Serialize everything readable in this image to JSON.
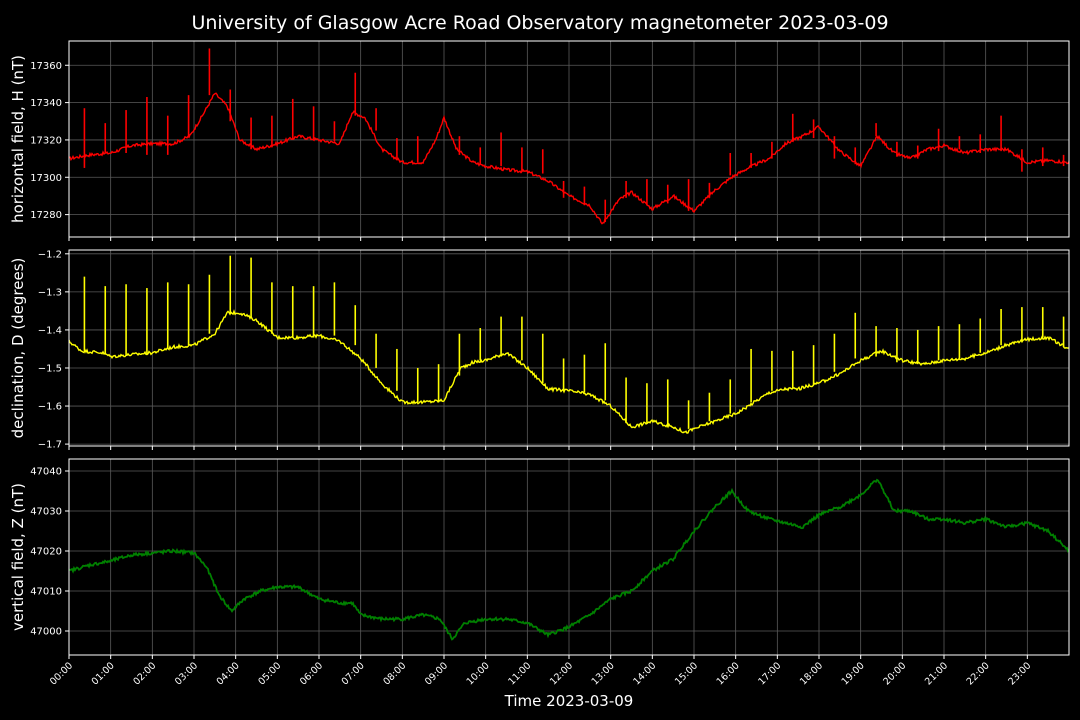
{
  "figure": {
    "title": "University of Glasgow Acre Road Observatory magnetometer 2023-03-09",
    "xlabel": "Time 2023-03-09",
    "x_tick_labels": [
      "00:00",
      "01:00",
      "02:00",
      "03:00",
      "04:00",
      "05:00",
      "06:00",
      "07:00",
      "08:00",
      "09:00",
      "10:00",
      "11:00",
      "12:00",
      "13:00",
      "14:00",
      "15:00",
      "16:00",
      "17:00",
      "18:00",
      "19:00",
      "20:00",
      "21:00",
      "22:00",
      "23:00"
    ],
    "background": "#000000",
    "grid_color": "#5a5a5a"
  },
  "chart_data": [
    {
      "type": "line",
      "ylabel": "horizontal field, H (nT)",
      "color": "#ff0000",
      "xlim": [
        0,
        24
      ],
      "ylim": [
        17268,
        17373
      ],
      "yticks": [
        17280,
        17300,
        17320,
        17340,
        17360
      ],
      "grid": true,
      "x": [
        0,
        0.5,
        1.0,
        1.5,
        2.0,
        2.5,
        2.9,
        3.2,
        3.5,
        3.8,
        4.1,
        4.5,
        5.0,
        5.5,
        6.0,
        6.5,
        6.8,
        7.1,
        7.5,
        8.0,
        8.5,
        8.8,
        9.0,
        9.3,
        9.7,
        10.0,
        10.5,
        11.0,
        11.5,
        12.0,
        12.5,
        12.8,
        13.2,
        13.5,
        14.0,
        14.5,
        15.0,
        15.5,
        15.9,
        16.3,
        16.8,
        17.2,
        17.6,
        18.0,
        18.5,
        19.0,
        19.4,
        19.8,
        20.2,
        20.6,
        21.0,
        21.5,
        22.0,
        22.5,
        23.0,
        23.5,
        24.0
      ],
      "y": [
        17310,
        17312,
        17313,
        17317,
        17318,
        17318,
        17322,
        17333,
        17345,
        17338,
        17320,
        17315,
        17318,
        17322,
        17320,
        17318,
        17335,
        17332,
        17315,
        17308,
        17308,
        17320,
        17332,
        17315,
        17308,
        17306,
        17304,
        17303,
        17298,
        17290,
        17285,
        17275,
        17288,
        17292,
        17283,
        17290,
        17282,
        17293,
        17300,
        17305,
        17310,
        17318,
        17322,
        17327,
        17314,
        17306,
        17322,
        17313,
        17310,
        17315,
        17317,
        17313,
        17315,
        17315,
        17308,
        17309,
        17308
      ],
      "spikes": [
        {
          "x": 0.37,
          "y0": 17305,
          "y1": 17337
        },
        {
          "x": 0.87,
          "y0": 17313,
          "y1": 17329
        },
        {
          "x": 1.37,
          "y0": 17313,
          "y1": 17336
        },
        {
          "x": 1.87,
          "y0": 17312,
          "y1": 17343
        },
        {
          "x": 2.37,
          "y0": 17312,
          "y1": 17333
        },
        {
          "x": 2.87,
          "y0": 17322,
          "y1": 17344
        },
        {
          "x": 3.37,
          "y0": 17344,
          "y1": 17369
        },
        {
          "x": 3.87,
          "y0": 17330,
          "y1": 17347
        },
        {
          "x": 4.37,
          "y0": 17315,
          "y1": 17332
        },
        {
          "x": 4.87,
          "y0": 17316,
          "y1": 17333
        },
        {
          "x": 5.37,
          "y0": 17320,
          "y1": 17342
        },
        {
          "x": 5.87,
          "y0": 17320,
          "y1": 17338
        },
        {
          "x": 6.37,
          "y0": 17319,
          "y1": 17330
        },
        {
          "x": 6.87,
          "y0": 17333,
          "y1": 17356
        },
        {
          "x": 7.37,
          "y0": 17325,
          "y1": 17337
        },
        {
          "x": 7.87,
          "y0": 17310,
          "y1": 17321
        },
        {
          "x": 8.37,
          "y0": 17308,
          "y1": 17322
        },
        {
          "x": 9.37,
          "y0": 17312,
          "y1": 17322
        },
        {
          "x": 9.87,
          "y0": 17307,
          "y1": 17316
        },
        {
          "x": 10.37,
          "y0": 17306,
          "y1": 17324
        },
        {
          "x": 10.87,
          "y0": 17303,
          "y1": 17316
        },
        {
          "x": 11.37,
          "y0": 17302,
          "y1": 17315
        },
        {
          "x": 11.87,
          "y0": 17289,
          "y1": 17298
        },
        {
          "x": 12.37,
          "y0": 17285,
          "y1": 17295
        },
        {
          "x": 12.87,
          "y0": 17276,
          "y1": 17288
        },
        {
          "x": 13.37,
          "y0": 17289,
          "y1": 17298
        },
        {
          "x": 13.87,
          "y0": 17285,
          "y1": 17299
        },
        {
          "x": 14.37,
          "y0": 17286,
          "y1": 17296
        },
        {
          "x": 14.87,
          "y0": 17282,
          "y1": 17299
        },
        {
          "x": 15.37,
          "y0": 17289,
          "y1": 17297
        },
        {
          "x": 15.87,
          "y0": 17301,
          "y1": 17313
        },
        {
          "x": 16.37,
          "y0": 17305,
          "y1": 17313
        },
        {
          "x": 16.87,
          "y0": 17310,
          "y1": 17319
        },
        {
          "x": 17.37,
          "y0": 17319,
          "y1": 17334
        },
        {
          "x": 17.87,
          "y0": 17321,
          "y1": 17331
        },
        {
          "x": 18.37,
          "y0": 17310,
          "y1": 17322
        },
        {
          "x": 18.87,
          "y0": 17307,
          "y1": 17316
        },
        {
          "x": 19.37,
          "y0": 17322,
          "y1": 17329
        },
        {
          "x": 19.87,
          "y0": 17311,
          "y1": 17319
        },
        {
          "x": 20.37,
          "y0": 17310,
          "y1": 17317
        },
        {
          "x": 20.87,
          "y0": 17314,
          "y1": 17326
        },
        {
          "x": 21.37,
          "y0": 17315,
          "y1": 17322
        },
        {
          "x": 21.87,
          "y0": 17313,
          "y1": 17323
        },
        {
          "x": 22.37,
          "y0": 17314,
          "y1": 17333
        },
        {
          "x": 22.87,
          "y0": 17303,
          "y1": 17315
        },
        {
          "x": 23.37,
          "y0": 17306,
          "y1": 17316
        },
        {
          "x": 23.87,
          "y0": 17306,
          "y1": 17312
        }
      ]
    },
    {
      "type": "line",
      "ylabel": "declination, D (degrees)",
      "color": "#ffff00",
      "xlim": [
        0,
        24
      ],
      "ylim": [
        -1.705,
        -1.19
      ],
      "yticks": [
        -1.7,
        -1.6,
        -1.5,
        -1.4,
        -1.3,
        -1.2
      ],
      "grid": true,
      "x": [
        0,
        0.3,
        0.8,
        1.0,
        1.5,
        2.0,
        2.5,
        3.0,
        3.5,
        3.8,
        4.1,
        4.5,
        5.0,
        5.5,
        6.0,
        6.5,
        7.0,
        7.5,
        8.0,
        8.5,
        9.0,
        9.4,
        9.7,
        10.0,
        10.5,
        11.0,
        11.5,
        12.0,
        12.5,
        13.0,
        13.5,
        14.0,
        14.5,
        14.8,
        15.0,
        15.5,
        16.0,
        16.3,
        16.8,
        17.2,
        17.5,
        18.0,
        18.5,
        19.0,
        19.5,
        20.0,
        20.5,
        21.0,
        21.5,
        22.0,
        22.5,
        23.0,
        23.5,
        24.0
      ],
      "y": [
        -1.43,
        -1.455,
        -1.46,
        -1.47,
        -1.465,
        -1.46,
        -1.445,
        -1.44,
        -1.41,
        -1.355,
        -1.355,
        -1.375,
        -1.42,
        -1.42,
        -1.415,
        -1.43,
        -1.475,
        -1.54,
        -1.59,
        -1.59,
        -1.585,
        -1.5,
        -1.485,
        -1.48,
        -1.46,
        -1.5,
        -1.555,
        -1.56,
        -1.57,
        -1.6,
        -1.655,
        -1.64,
        -1.655,
        -1.67,
        -1.66,
        -1.64,
        -1.62,
        -1.6,
        -1.565,
        -1.555,
        -1.555,
        -1.54,
        -1.515,
        -1.48,
        -1.455,
        -1.48,
        -1.49,
        -1.48,
        -1.475,
        -1.46,
        -1.44,
        -1.425,
        -1.42,
        -1.45
      ],
      "spikes": [
        {
          "x": 0.37,
          "y0": -1.455,
          "y1": -1.26
        },
        {
          "x": 0.87,
          "y0": -1.465,
          "y1": -1.285
        },
        {
          "x": 1.37,
          "y0": -1.465,
          "y1": -1.28
        },
        {
          "x": 1.87,
          "y0": -1.463,
          "y1": -1.29
        },
        {
          "x": 2.37,
          "y0": -1.45,
          "y1": -1.275
        },
        {
          "x": 2.87,
          "y0": -1.44,
          "y1": -1.28
        },
        {
          "x": 3.37,
          "y0": -1.41,
          "y1": -1.255
        },
        {
          "x": 3.87,
          "y0": -1.355,
          "y1": -1.205
        },
        {
          "x": 4.37,
          "y0": -1.365,
          "y1": -1.21
        },
        {
          "x": 4.87,
          "y0": -1.41,
          "y1": -1.275
        },
        {
          "x": 5.37,
          "y0": -1.42,
          "y1": -1.285
        },
        {
          "x": 5.87,
          "y0": -1.42,
          "y1": -1.285
        },
        {
          "x": 6.37,
          "y0": -1.415,
          "y1": -1.275
        },
        {
          "x": 6.87,
          "y0": -1.44,
          "y1": -1.335
        },
        {
          "x": 7.37,
          "y0": -1.5,
          "y1": -1.41
        },
        {
          "x": 7.87,
          "y0": -1.56,
          "y1": -1.45
        },
        {
          "x": 8.37,
          "y0": -1.59,
          "y1": -1.5
        },
        {
          "x": 8.87,
          "y0": -1.59,
          "y1": -1.49
        },
        {
          "x": 9.37,
          "y0": -1.52,
          "y1": -1.41
        },
        {
          "x": 9.87,
          "y0": -1.48,
          "y1": -1.395
        },
        {
          "x": 10.37,
          "y0": -1.47,
          "y1": -1.365
        },
        {
          "x": 10.87,
          "y0": -1.48,
          "y1": -1.365
        },
        {
          "x": 11.37,
          "y0": -1.54,
          "y1": -1.41
        },
        {
          "x": 11.87,
          "y0": -1.56,
          "y1": -1.475
        },
        {
          "x": 12.37,
          "y0": -1.565,
          "y1": -1.465
        },
        {
          "x": 12.87,
          "y0": -1.585,
          "y1": -1.435
        },
        {
          "x": 13.37,
          "y0": -1.645,
          "y1": -1.525
        },
        {
          "x": 13.87,
          "y0": -1.645,
          "y1": -1.54
        },
        {
          "x": 14.37,
          "y0": -1.65,
          "y1": -1.53
        },
        {
          "x": 14.87,
          "y0": -1.66,
          "y1": -1.585
        },
        {
          "x": 15.37,
          "y0": -1.64,
          "y1": -1.565
        },
        {
          "x": 15.87,
          "y0": -1.62,
          "y1": -1.53
        },
        {
          "x": 16.37,
          "y0": -1.59,
          "y1": -1.45
        },
        {
          "x": 16.87,
          "y0": -1.56,
          "y1": -1.455
        },
        {
          "x": 17.37,
          "y0": -1.555,
          "y1": -1.455
        },
        {
          "x": 17.87,
          "y0": -1.545,
          "y1": -1.44
        },
        {
          "x": 18.37,
          "y0": -1.51,
          "y1": -1.41
        },
        {
          "x": 18.87,
          "y0": -1.475,
          "y1": -1.355
        },
        {
          "x": 19.37,
          "y0": -1.47,
          "y1": -1.39
        },
        {
          "x": 19.87,
          "y0": -1.485,
          "y1": -1.395
        },
        {
          "x": 20.37,
          "y0": -1.49,
          "y1": -1.4
        },
        {
          "x": 20.87,
          "y0": -1.48,
          "y1": -1.39
        },
        {
          "x": 21.37,
          "y0": -1.475,
          "y1": -1.385
        },
        {
          "x": 21.87,
          "y0": -1.46,
          "y1": -1.37
        },
        {
          "x": 22.37,
          "y0": -1.44,
          "y1": -1.345
        },
        {
          "x": 22.87,
          "y0": -1.43,
          "y1": -1.34
        },
        {
          "x": 23.37,
          "y0": -1.42,
          "y1": -1.34
        },
        {
          "x": 23.87,
          "y0": -1.445,
          "y1": -1.365
        }
      ]
    },
    {
      "type": "line",
      "ylabel": "vertical field, Z (nT)",
      "color": "#008000",
      "xlim": [
        0,
        24
      ],
      "ylim": [
        46994,
        47043
      ],
      "yticks": [
        47000,
        47010,
        47020,
        47030,
        47040
      ],
      "grid": true,
      "x": [
        0,
        0.5,
        1.0,
        1.5,
        2.0,
        2.5,
        3.0,
        3.3,
        3.6,
        3.9,
        4.2,
        4.6,
        5.0,
        5.5,
        6.0,
        6.5,
        6.8,
        7.0,
        7.5,
        8.0,
        8.5,
        8.9,
        9.2,
        9.5,
        10.0,
        10.5,
        11.0,
        11.5,
        12.0,
        12.5,
        13.0,
        13.5,
        14.0,
        14.5,
        15.0,
        15.5,
        15.9,
        16.3,
        16.8,
        17.2,
        17.6,
        18.0,
        18.5,
        19.0,
        19.4,
        19.8,
        20.2,
        20.6,
        21.0,
        21.5,
        22.0,
        22.5,
        23.0,
        23.5,
        24.0
      ],
      "y": [
        47015,
        47016.5,
        47017.5,
        47019,
        47019.5,
        47020,
        47019.5,
        47016,
        47009,
        47005,
        47008,
        47010,
        47011,
        47011,
        47008,
        47007,
        47007,
        47004,
        47003,
        47003,
        47004,
        47003,
        46998,
        47002,
        47003,
        47003,
        47002,
        46999,
        47001,
        47004,
        47008,
        47010,
        47015,
        47018,
        47025,
        47031,
        47035,
        47030,
        47028,
        47027,
        47026,
        47029,
        47031,
        47034,
        47038,
        47030,
        47030,
        47028,
        47028,
        47027,
        47028,
        47026,
        47027,
        47025,
        47020
      ]
    }
  ]
}
